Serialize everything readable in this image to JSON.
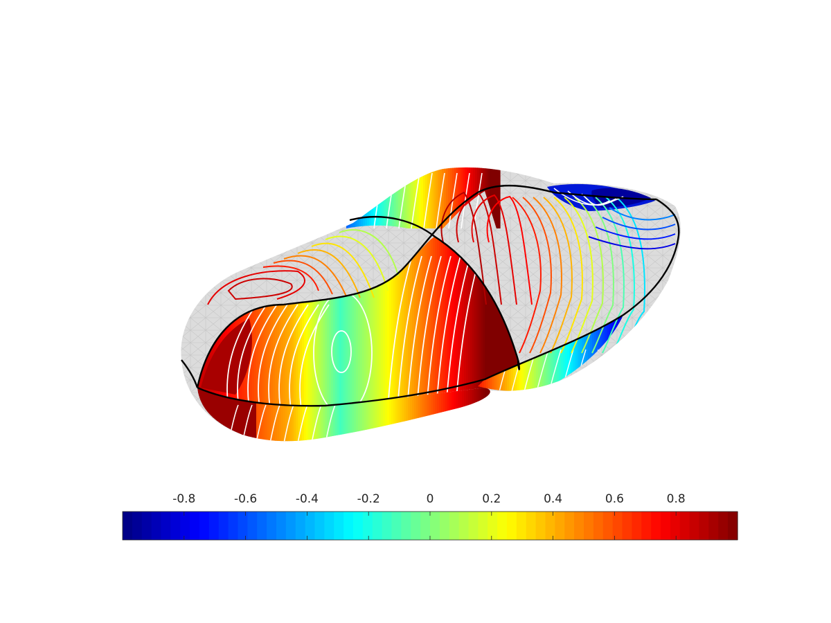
{
  "chart_data": {
    "type": "heatmap",
    "title": "",
    "xlabel": "",
    "ylabel": "",
    "description_kind": "3d-surface-with-contours",
    "colormap": "jet",
    "clim": [
      -1,
      1
    ],
    "colorbar": {
      "placement": "bottom",
      "ticks": [
        -0.8,
        -0.6,
        -0.4,
        -0.2,
        0,
        0.2,
        0.4,
        0.6,
        0.8
      ],
      "tick_labels": [
        "-0.8",
        "-0.6",
        "-0.4",
        "-0.2",
        "0",
        "0.2",
        "0.4",
        "0.6",
        "0.8"
      ]
    },
    "contour_levels": [
      -0.9,
      -0.8,
      -0.7,
      -0.6,
      -0.5,
      -0.4,
      -0.3,
      -0.2,
      -0.1,
      0,
      0.1,
      0.2,
      0.3,
      0.4,
      0.5,
      0.6,
      0.7,
      0.8,
      0.9
    ],
    "grid": false,
    "colors": {
      "mesh_gray": "#dcdcdc",
      "mesh_line": "#c4c4c4",
      "boundary": "#000000",
      "front_contour": "#ffffff",
      "axis_text": "#262626"
    }
  }
}
